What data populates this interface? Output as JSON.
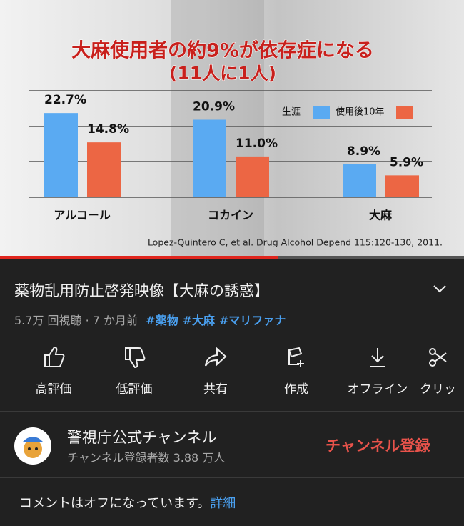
{
  "chart_data": {
    "type": "bar",
    "title": "大麻使用者の約9%が依存症になる",
    "subtitle": "(11人に1人)",
    "categories": [
      "アルコール",
      "コカイン",
      "大麻"
    ],
    "series": [
      {
        "name": "生涯",
        "color": "#5aaaf2",
        "values": [
          22.7,
          20.9,
          8.9
        ],
        "value_labels": [
          "22.7%",
          "20.9%",
          "8.9%"
        ]
      },
      {
        "name": "使用後10年",
        "color": "#ec6644",
        "values": [
          14.8,
          11.0,
          5.9
        ],
        "value_labels": [
          "14.8%",
          "11.0%",
          "5.9%"
        ]
      }
    ],
    "ylim": [
      0,
      28.7
    ],
    "legend": "top-right",
    "source": "Lopez-Quintero C, et al. Drug Alcohol Depend 115:120-130, 2011."
  },
  "video": {
    "title": "薬物乱用防止啓発映像【大麻の誘惑】",
    "meta": "5.7万 回視聴 · 7 か月前",
    "hashtags": [
      "#薬物",
      "#大麻",
      "#マリファナ"
    ]
  },
  "actions": [
    "高評価",
    "低評価",
    "共有",
    "作成",
    "オフライン",
    "クリッ"
  ],
  "channel": {
    "name": "警視庁公式チャンネル",
    "subscribers": "チャンネル登録者数 3.88 万人",
    "subscribe": "チャンネル登録"
  },
  "comments": {
    "status": "コメントはオフになっています。",
    "link": "詳細"
  }
}
